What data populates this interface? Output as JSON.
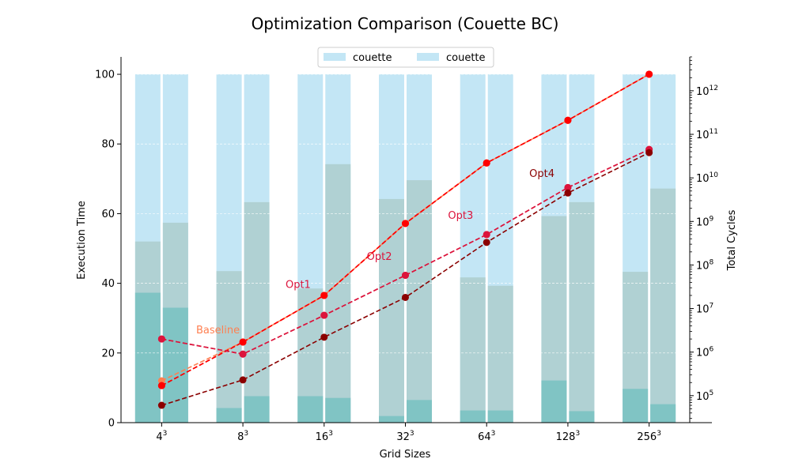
{
  "chart_data": {
    "type": "bar",
    "title": "Optimization Comparison (Couette BC)",
    "xlabel": "Grid Sizes",
    "ylabel": "Execution Time",
    "ylabel_right": "Total Cycles",
    "categories": [
      "4^3",
      "8^3",
      "16^3",
      "32^3",
      "64^3",
      "128^3",
      "256^3"
    ],
    "category_base": [
      "4",
      "8",
      "16",
      "32",
      "64",
      "128",
      "256"
    ],
    "category_exp": "3",
    "ylim": [
      0,
      105
    ],
    "yticks": [
      0,
      20,
      40,
      60,
      80,
      100
    ],
    "y2_scale": "log",
    "y2lim": [
      24000,
      6000000000000
    ],
    "y2ticks": [
      {
        "base": "10",
        "exp": "5",
        "value": 100000
      },
      {
        "base": "10",
        "exp": "6",
        "value": 1000000
      },
      {
        "base": "10",
        "exp": "7",
        "value": 10000000
      },
      {
        "base": "10",
        "exp": "8",
        "value": 100000000
      },
      {
        "base": "10",
        "exp": "9",
        "value": 1000000000
      },
      {
        "base": "10",
        "exp": "10",
        "value": 10000000000
      },
      {
        "base": "10",
        "exp": "11",
        "value": 100000000000
      },
      {
        "base": "10",
        "exp": "12",
        "value": 1000000000000
      }
    ],
    "legend": {
      "placement": "top-center",
      "entries": [
        {
          "label": "couette",
          "color": "#c3e6f5"
        },
        {
          "label": "couette",
          "color": "#c3e6f5"
        }
      ]
    },
    "bar_groups": [
      {
        "name": "couette",
        "total": [
          100,
          100,
          100,
          100,
          100,
          100,
          100
        ],
        "middle": [
          52,
          43.5,
          38.5,
          64.2,
          41.7,
          59.3,
          43.3
        ],
        "bottom": [
          37.3,
          4.2,
          7.6,
          1.9,
          3.5,
          12.1,
          9.7
        ]
      },
      {
        "name": "couette",
        "total": [
          100,
          100,
          100,
          100,
          100,
          100,
          100
        ],
        "middle": [
          57.4,
          63.3,
          74.2,
          69.6,
          39.3,
          63.3,
          67.2
        ],
        "bottom": [
          33,
          7.6,
          7.1,
          6.5,
          3.5,
          3.3,
          5.3
        ]
      }
    ],
    "bar_colors": {
      "top": "#c3e6f5",
      "middle": "#b0d1d3",
      "bottom": "#80c4c4"
    },
    "line_series": [
      {
        "label": "Baseline",
        "color": "#ff7f50",
        "values": [
          220000,
          1700000,
          20000000,
          900000000,
          22000000000,
          210000000000,
          2400000000000
        ]
      },
      {
        "label": "",
        "color": "#ff0000",
        "values": [
          170000,
          1700000,
          20000000,
          900000000,
          22000000000,
          210000000000,
          2400000000000
        ]
      },
      {
        "label": "Opt1",
        "color": "#ff0000",
        "values": [
          170000,
          1700000,
          20000000,
          900000000,
          22000000000,
          210000000000,
          2400000000000
        ]
      },
      {
        "label": "Opt2",
        "color": "#dc143c",
        "values": [
          2000000,
          900000,
          7000000,
          58000000,
          500000000,
          6000000000,
          45000000000
        ]
      },
      {
        "label": "Opt3",
        "color": "#dc143c",
        "values": [
          2000000,
          900000,
          7000000,
          58000000,
          500000000,
          6000000000,
          45000000000
        ]
      },
      {
        "label": "Opt4",
        "color": "#8b0000",
        "values": [
          60000,
          230000,
          2200000,
          18000000,
          330000000,
          4500000000,
          38000000000
        ]
      }
    ],
    "annotations": [
      {
        "text": "Baseline",
        "color": "#ff7f50",
        "x_index": 0.6,
        "value": 2700000
      },
      {
        "text": "Opt1",
        "color": "#dc143c",
        "x_index": 1.7,
        "value": 30000000
      },
      {
        "text": "Opt2",
        "color": "#dc143c",
        "x_index": 2.7,
        "value": 130000000
      },
      {
        "text": "Opt3",
        "color": "#dc143c",
        "x_index": 3.7,
        "value": 1150000000
      },
      {
        "text": "Opt4",
        "color": "#8b0000",
        "x_index": 4.7,
        "value": 10500000000
      }
    ],
    "grid": "horizontal dashed"
  }
}
